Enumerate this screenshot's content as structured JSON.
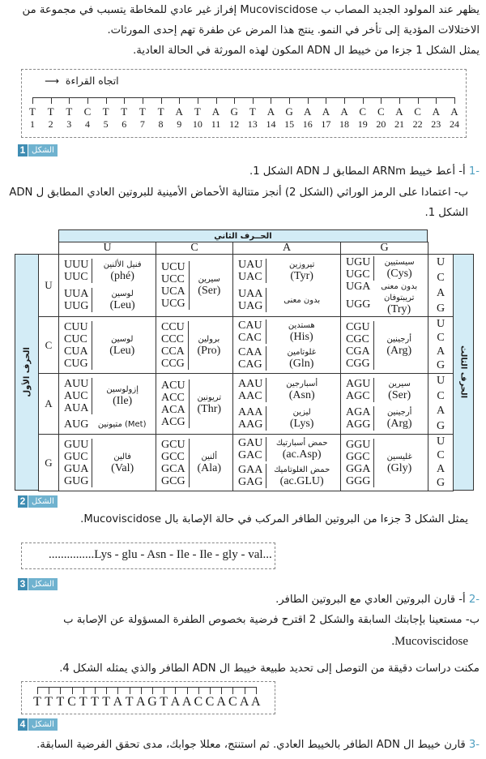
{
  "intro": {
    "line1": "يظهر عند المولود الجديد المصاب ب Mucoviscidose إفراز غير عادي للمخاطة يتسبب في مجموعة من",
    "line2": "الاختلالات المؤدية إلى تأخر في النمو. ينتج هذا المرض عن طفرة تهم إحدى المورثات.",
    "line3": "يمثل الشكل 1 جزءا من خييط ال ADN المكون لهذه المورثة في الحالة العادية."
  },
  "figure1": {
    "reading_direction": "اتجاه القراءة",
    "letters": [
      "T",
      "T",
      "T",
      "C",
      "T",
      "T",
      "T",
      "T",
      "A",
      "T",
      "A",
      "G",
      "T",
      "A",
      "G",
      "A",
      "A",
      "A",
      "C",
      "C",
      "A",
      "C",
      "A",
      "A"
    ],
    "numbers": [
      "1",
      "2",
      "3",
      "4",
      "5",
      "6",
      "7",
      "8",
      "9",
      "10",
      "11",
      "12",
      "13",
      "14",
      "15",
      "16",
      "17",
      "18",
      "19",
      "20",
      "21",
      "22",
      "23",
      "24"
    ],
    "label_word": "الشكل",
    "label_num": "1"
  },
  "q1": {
    "num": "-1",
    "a": "أ- أعط خييط ARNm المطابق لـ ADN الشكل 1.",
    "b": "ب- اعتمادا على الرمز الوراثي (الشكل 2) أنجز متتالية الأحماض الأمينية للبروتين العادي المطابق ل ADN",
    "b2": "الشكل 1."
  },
  "table": {
    "second_letter": "الحــرف الثاني",
    "first_letter": "الحرف الأول",
    "third_letter": "الحرف الثالث",
    "columns": [
      "U",
      "C",
      "A",
      "G"
    ],
    "third_letters": [
      "U",
      "C",
      "A",
      "G"
    ],
    "rows": [
      {
        "letter": "U",
        "cells": [
          [
            {
              "codons": [
                "UUU",
                "UUC"
              ],
              "ar": "فنيل الألنين",
              "en": "(phé)"
            },
            {
              "codons": [
                "UUA",
                "UUG"
              ],
              "ar": "لوسين",
              "en": "(Leu)"
            }
          ],
          [
            {
              "codons": [
                "UCU",
                "UCC",
                "UCA",
                "UCG"
              ],
              "ar": "سيرين",
              "en": "(Ser)"
            }
          ],
          [
            {
              "codons": [
                "UAU",
                "UAC"
              ],
              "ar": "تيروزين",
              "en": "(Tyr)"
            },
            {
              "codons": [
                "UAA",
                "UAG"
              ],
              "ar": "بدون معنى",
              "en": ""
            }
          ],
          [
            {
              "codons": [
                "UGU",
                "UGC"
              ],
              "ar": "سيستيين",
              "en": "(Cys)"
            },
            {
              "codons": [
                "UGA"
              ],
              "ar": "بدون معنى",
              "en": ""
            },
            {
              "codons": [
                "UGG"
              ],
              "ar": "تريبتوفان",
              "en": "(Try)"
            }
          ]
        ]
      },
      {
        "letter": "C",
        "cells": [
          [
            {
              "codons": [
                "CUU",
                "CUC",
                "CUA",
                "CUG"
              ],
              "ar": "لوسين",
              "en": "(Leu)"
            }
          ],
          [
            {
              "codons": [
                "CCU",
                "CCC",
                "CCA",
                "CCG"
              ],
              "ar": "برولين",
              "en": "(Pro)"
            }
          ],
          [
            {
              "codons": [
                "CAU",
                "CAC"
              ],
              "ar": "هستدين",
              "en": "(His)"
            },
            {
              "codons": [
                "CAA",
                "CAG"
              ],
              "ar": "غلوتامين",
              "en": "(Gln)"
            }
          ],
          [
            {
              "codons": [
                "CGU",
                "CGC",
                "CGA",
                "CGG"
              ],
              "ar": "أرجينين",
              "en": "(Arg)"
            }
          ]
        ]
      },
      {
        "letter": "A",
        "cells": [
          [
            {
              "codons": [
                "AUU",
                "AUC",
                "AUA"
              ],
              "ar": "إزولوسين",
              "en": "(Ile)"
            },
            {
              "codons": [
                "AUG"
              ],
              "ar": "متيونين (Met)",
              "en": ""
            }
          ],
          [
            {
              "codons": [
                "ACU",
                "ACC",
                "ACA",
                "ACG"
              ],
              "ar": "تريونين",
              "en": "(Thr)"
            }
          ],
          [
            {
              "codons": [
                "AAU",
                "AAC"
              ],
              "ar": "أسبارجين",
              "en": "(Asn)"
            },
            {
              "codons": [
                "AAA",
                "AAG"
              ],
              "ar": "ليزين",
              "en": "(Lys)"
            }
          ],
          [
            {
              "codons": [
                "AGU",
                "AGC"
              ],
              "ar": "سيرين",
              "en": "(Ser)"
            },
            {
              "codons": [
                "AGA",
                "AGG"
              ],
              "ar": "أرجينين",
              "en": "(Arg)"
            }
          ]
        ]
      },
      {
        "letter": "G",
        "cells": [
          [
            {
              "codons": [
                "GUU",
                "GUC",
                "GUA",
                "GUG"
              ],
              "ar": "فالين",
              "en": "(Val)"
            }
          ],
          [
            {
              "codons": [
                "GCU",
                "GCC",
                "GCA",
                "GCG"
              ],
              "ar": "ألنين",
              "en": "(Ala)"
            }
          ],
          [
            {
              "codons": [
                "GAU",
                "GAC"
              ],
              "ar": "حمض أسبارتيك",
              "en": "(ac.Asp)"
            },
            {
              "codons": [
                "GAA",
                "GAG"
              ],
              "ar": "حمض الغلوتاميك",
              "en": "(ac.GLU)"
            }
          ],
          [
            {
              "codons": [
                "GGU",
                "GGC",
                "GGA",
                "GGG"
              ],
              "ar": "غليسين",
              "en": "(Gly)"
            }
          ]
        ]
      }
    ],
    "label_word": "الشكل",
    "label_num": "2"
  },
  "fig3_intro": "يمثل الشكل 3 جزءا من البروتين الطافر المركب في حالة الإصابة بال Mucoviscidose.",
  "figure3": {
    "sequence": "...............Lys - glu - Asn - Ile - Ile - gly - val...",
    "label_word": "الشكل",
    "label_num": "3"
  },
  "q2": {
    "num": "-2",
    "a": "أ- قارن البروتين العادي مع البروتين الطافر.",
    "b": "ب- مستعينا بإجابتك السابقة والشكل 2 اقترح فرضية بخصوص الطفرة المسؤولة عن الإصابة ب",
    "b2": "Mucoviscidose."
  },
  "fig4_intro": "مكنت دراسات دقيقة من التوصل إلى تحديد طبيعة خييط ال ADN الطافر والذي يمثله الشكل 4.",
  "figure4": {
    "letters": [
      "T",
      "T",
      "T",
      "C",
      "T",
      "T",
      "T",
      "A",
      "T",
      "A",
      "G",
      "T",
      "A",
      "A",
      "C",
      "C",
      "A",
      "C",
      "A",
      "A"
    ],
    "label_word": "الشكل",
    "label_num": "4"
  },
  "q3": {
    "num": "-3",
    "text": "قارن خييط ال ADN الطافر بالخييط العادي. ثم استنتج، معللا جوابك، مدى تحقق الفرضية السابقة."
  },
  "colors": {
    "label_bg": "#6fb2cf",
    "label_num_bg": "#3f8db3",
    "table_header_bg": "#d3ecf6",
    "question_number": "#4f9fc0"
  }
}
